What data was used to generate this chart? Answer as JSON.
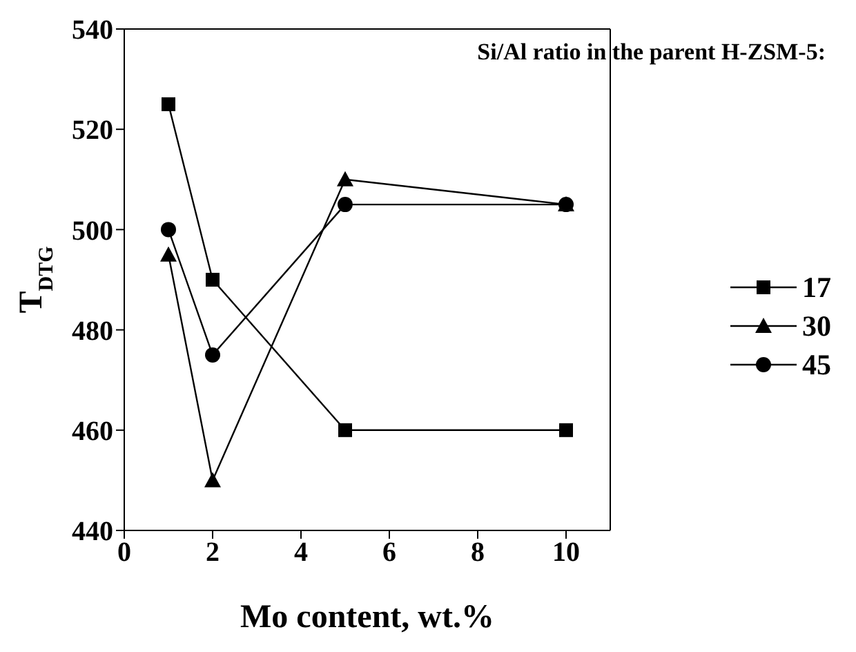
{
  "chart_data": {
    "type": "line",
    "xlabel": "Mo content, wt.%",
    "ylabel": "T$_{DTG}$",
    "legend_title": "Si/Al ratio in the parent H-ZSM-5:",
    "x": [
      1,
      2,
      5,
      10
    ],
    "series": [
      {
        "name": "17",
        "color": "#000000",
        "marker": "square",
        "values": [
          525,
          490,
          460,
          460
        ]
      },
      {
        "name": "30",
        "color": "#000000",
        "marker": "triangle",
        "values": [
          495,
          450,
          510,
          505
        ]
      },
      {
        "name": "45",
        "color": "#000000",
        "marker": "circle",
        "values": [
          500,
          475,
          505,
          505
        ]
      }
    ],
    "xlim": [
      0,
      11
    ],
    "xticks": [
      0,
      2,
      4,
      6,
      8,
      10
    ],
    "ylim": [
      440,
      540
    ],
    "yticks": [
      440,
      460,
      480,
      500,
      520,
      540
    ],
    "legend": "right",
    "line_style": "solid"
  }
}
